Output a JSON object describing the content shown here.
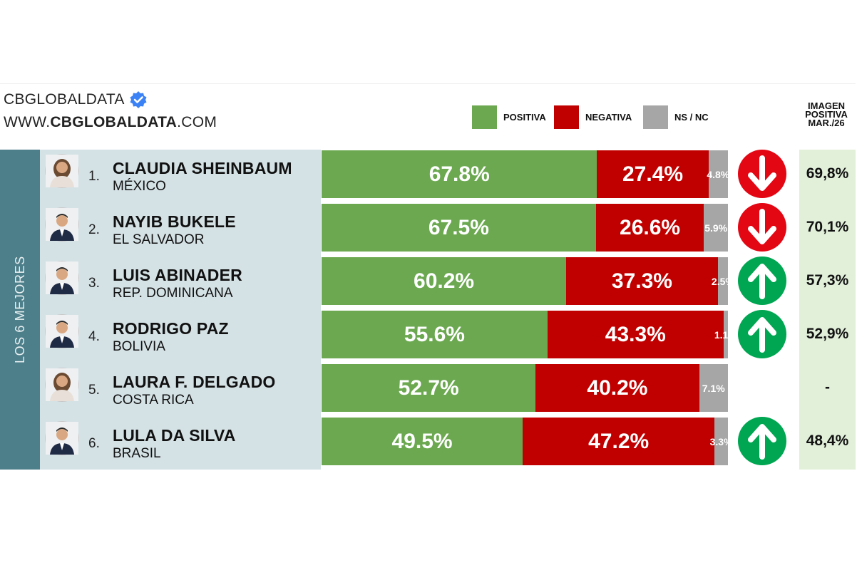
{
  "brand": {
    "name": "CBGLOBALDATA",
    "url_prefix": "WWW.",
    "url_bold": "CBGLOBALDATA",
    "url_suffix": ".COM"
  },
  "legend": [
    {
      "label": "POSITIVA",
      "color": "#6ba84f"
    },
    {
      "label": "NEGATIVA",
      "color": "#c00000"
    },
    {
      "label": "NS / NC",
      "color": "#a6a6a6"
    }
  ],
  "previous_header": [
    "IMAGEN",
    "POSITIVA",
    "MAR./26"
  ],
  "sidebar_label": "LOS 6 MEJORES",
  "trend_colors": {
    "up": "#00a651",
    "down": "#e30613"
  },
  "chart_data": {
    "type": "bar",
    "stacked": true,
    "orientation": "horizontal",
    "categories": [
      "CLAUDIA SHEINBAUM",
      "NAYIB BUKELE",
      "LUIS ABINADER",
      "RODRIGO PAZ",
      "LAURA F. DELGADO",
      "LULA DA SILVA"
    ],
    "series": [
      {
        "name": "POSITIVA",
        "values": [
          67.8,
          67.5,
          60.2,
          55.6,
          52.7,
          49.5
        ]
      },
      {
        "name": "NEGATIVA",
        "values": [
          27.4,
          26.6,
          37.3,
          43.3,
          40.2,
          47.2
        ]
      },
      {
        "name": "NS / NC",
        "values": [
          4.8,
          5.9,
          2.5,
          1.1,
          7.1,
          3.3
        ]
      }
    ],
    "xlim": [
      0,
      100
    ]
  },
  "rows": [
    {
      "rank": "1.",
      "name": "CLAUDIA SHEINBAUM",
      "country": "MÉXICO",
      "pos": "67.8%",
      "neg": "27.4%",
      "ns": "4.8%",
      "trend": "down",
      "previous": "69,8%",
      "avatar": "woman-avatar"
    },
    {
      "rank": "2.",
      "name": "NAYIB BUKELE",
      "country": "EL SALVADOR",
      "pos": "67.5%",
      "neg": "26.6%",
      "ns": "5.9%",
      "trend": "down",
      "previous": "70,1%",
      "avatar": "man-avatar"
    },
    {
      "rank": "3.",
      "name": "LUIS ABINADER",
      "country": "REP. DOMINICANA",
      "pos": "60.2%",
      "neg": "37.3%",
      "ns": "2.5%",
      "trend": "up",
      "previous": "57,3%",
      "avatar": "man-avatar"
    },
    {
      "rank": "4.",
      "name": "RODRIGO PAZ",
      "country": "BOLIVIA",
      "pos": "55.6%",
      "neg": "43.3%",
      "ns": "1.1%",
      "trend": "up",
      "previous": "52,9%",
      "avatar": "man-avatar"
    },
    {
      "rank": "5.",
      "name": "LAURA F. DELGADO",
      "country": "COSTA RICA",
      "pos": "52.7%",
      "neg": "40.2%",
      "ns": "7.1%",
      "trend": "none",
      "previous": "-",
      "avatar": "woman-avatar"
    },
    {
      "rank": "6.",
      "name": "LULA DA SILVA",
      "country": "BRASIL",
      "pos": "49.5%",
      "neg": "47.2%",
      "ns": "3.3%",
      "trend": "up",
      "previous": "48,4%",
      "avatar": "man-avatar"
    }
  ]
}
